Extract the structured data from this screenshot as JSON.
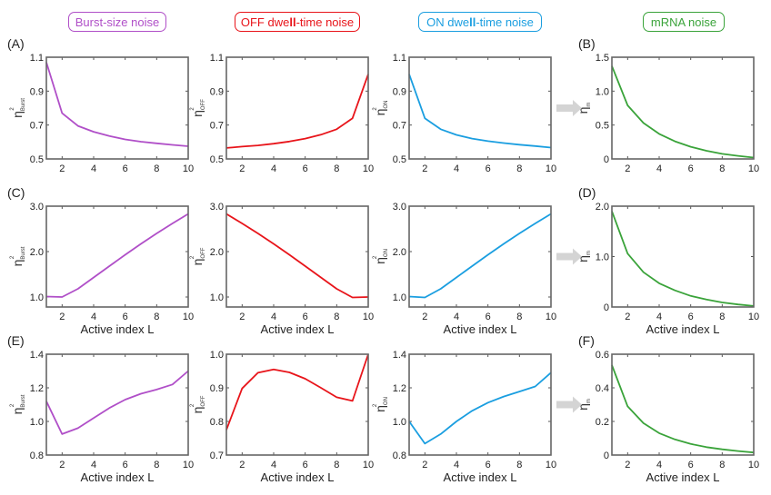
{
  "headers": [
    {
      "pre": "Burst-size noise",
      "bold": "",
      "post": "",
      "color": "#b04fc8"
    },
    {
      "pre": "OFF dwe",
      "bold": "ll",
      "post": "-time noise",
      "color": "#e8141a"
    },
    {
      "pre": "ON dwe",
      "bold": "ll",
      "post": "-time noise",
      "color": "#1a9ee0"
    },
    {
      "pre": "mRNA noise",
      "bold": "",
      "post": "",
      "color": "#3aa33a"
    }
  ],
  "panel_letters": [
    "(A)",
    "(B)",
    "(C)",
    "(D)",
    "(E)",
    "(F)"
  ],
  "arrow_color": "#d4d4d4",
  "chart_data": [
    {
      "id": "A-burst",
      "type": "line",
      "row": 0,
      "col": 0,
      "color": "#b04fc8",
      "xlabel": "",
      "ylabel": "η²Burst",
      "ylabel_main": "η",
      "ylabel_sup": "2",
      "ylabel_sub": "Burst",
      "x": [
        1,
        2,
        3,
        4,
        5,
        6,
        7,
        8,
        9,
        10
      ],
      "values": [
        1.07,
        0.77,
        0.695,
        0.66,
        0.635,
        0.615,
        0.602,
        0.592,
        0.583,
        0.575
      ],
      "ylim": [
        0.5,
        1.1
      ],
      "yticks": [
        0.5,
        0.7,
        0.9,
        1.1
      ],
      "ytick_labels": [
        "0.5",
        "0.7",
        "0.9",
        "1.1"
      ],
      "xlim": [
        1,
        10
      ],
      "xticks": [
        2,
        4,
        6,
        8,
        10
      ],
      "xtick_labels": [
        "2",
        "4",
        "6",
        "8",
        "10"
      ]
    },
    {
      "id": "A-off",
      "type": "line",
      "row": 0,
      "col": 1,
      "color": "#e8141a",
      "xlabel": "",
      "ylabel": "η²OFF",
      "ylabel_main": "η",
      "ylabel_sup": "2",
      "ylabel_sub": "OFF",
      "x": [
        1,
        2,
        3,
        4,
        5,
        6,
        7,
        8,
        9,
        10
      ],
      "values": [
        0.565,
        0.573,
        0.58,
        0.59,
        0.603,
        0.62,
        0.643,
        0.675,
        0.74,
        1.0
      ],
      "ylim": [
        0.5,
        1.1
      ],
      "yticks": [
        0.5,
        0.7,
        0.9,
        1.1
      ],
      "ytick_labels": [
        "0.5",
        "0.7",
        "0.9",
        "1.1"
      ],
      "xlim": [
        1,
        10
      ],
      "xticks": [
        2,
        4,
        6,
        8,
        10
      ],
      "xtick_labels": [
        "2",
        "4",
        "6",
        "8",
        "10"
      ]
    },
    {
      "id": "A-on",
      "type": "line",
      "row": 0,
      "col": 2,
      "color": "#1a9ee0",
      "xlabel": "",
      "ylabel": "η²ON",
      "ylabel_main": "η",
      "ylabel_sup": "2",
      "ylabel_sub": "ON",
      "x": [
        1,
        2,
        3,
        4,
        5,
        6,
        7,
        8,
        9,
        10
      ],
      "values": [
        1.0,
        0.74,
        0.675,
        0.642,
        0.62,
        0.605,
        0.594,
        0.584,
        0.576,
        0.567
      ],
      "ylim": [
        0.5,
        1.1
      ],
      "yticks": [
        0.5,
        0.7,
        0.9,
        1.1
      ],
      "ytick_labels": [
        "0.5",
        "0.7",
        "0.9",
        "1.1"
      ],
      "xlim": [
        1,
        10
      ],
      "xticks": [
        2,
        4,
        6,
        8,
        10
      ],
      "xtick_labels": [
        "2",
        "4",
        "6",
        "8",
        "10"
      ]
    },
    {
      "id": "B-mrna",
      "type": "line",
      "row": 0,
      "col": 3,
      "color": "#3aa33a",
      "xlabel": "",
      "ylabel": "η²m",
      "ylabel_main": "η",
      "ylabel_sup": "2",
      "ylabel_sub": "m",
      "x": [
        1,
        2,
        3,
        4,
        5,
        6,
        7,
        8,
        9,
        10
      ],
      "values": [
        1.37,
        0.79,
        0.53,
        0.37,
        0.26,
        0.18,
        0.12,
        0.075,
        0.045,
        0.02
      ],
      "ylim": [
        0,
        1.5
      ],
      "yticks": [
        0,
        0.5,
        1.0,
        1.5
      ],
      "ytick_labels": [
        "0",
        "0.5",
        "1.0",
        "1.5"
      ],
      "xlim": [
        1,
        10
      ],
      "xticks": [
        2,
        4,
        6,
        8,
        10
      ],
      "xtick_labels": [
        "2",
        "4",
        "6",
        "8",
        "10"
      ]
    },
    {
      "id": "C-burst",
      "type": "line",
      "row": 1,
      "col": 0,
      "color": "#b04fc8",
      "xlabel": "Active index L",
      "ylabel": "η²Burst",
      "ylabel_main": "η",
      "ylabel_sup": "2",
      "ylabel_sub": "Burst",
      "x": [
        1,
        2,
        3,
        4,
        5,
        6,
        7,
        8,
        9,
        10
      ],
      "values": [
        1.01,
        1.0,
        1.18,
        1.43,
        1.68,
        1.93,
        2.17,
        2.4,
        2.62,
        2.83
      ],
      "ylim": [
        0.78,
        3.0
      ],
      "yticks": [
        1.0,
        2.0,
        3.0
      ],
      "ytick_labels": [
        "1.0",
        "2.0",
        "3.0"
      ],
      "xlim": [
        1,
        10
      ],
      "xticks": [
        2,
        4,
        6,
        8,
        10
      ],
      "xtick_labels": [
        "2",
        "4",
        "6",
        "8",
        "10"
      ]
    },
    {
      "id": "C-off",
      "type": "line",
      "row": 1,
      "col": 1,
      "color": "#e8141a",
      "xlabel": "Active index L",
      "ylabel": "η²OFF",
      "ylabel_main": "η",
      "ylabel_sup": "2",
      "ylabel_sub": "OFF",
      "x": [
        1,
        2,
        3,
        4,
        5,
        6,
        7,
        8,
        9,
        10
      ],
      "values": [
        2.83,
        2.62,
        2.4,
        2.17,
        1.93,
        1.68,
        1.43,
        1.18,
        0.99,
        1.0
      ],
      "ylim": [
        0.78,
        3.0
      ],
      "yticks": [
        1.0,
        2.0,
        3.0
      ],
      "ytick_labels": [
        "1.0",
        "2.0",
        "3.0"
      ],
      "xlim": [
        1,
        10
      ],
      "xticks": [
        2,
        4,
        6,
        8,
        10
      ],
      "xtick_labels": [
        "2",
        "4",
        "6",
        "8",
        "10"
      ]
    },
    {
      "id": "C-on",
      "type": "line",
      "row": 1,
      "col": 2,
      "color": "#1a9ee0",
      "xlabel": "Active index L",
      "ylabel": "η²ON",
      "ylabel_main": "η",
      "ylabel_sup": "2",
      "ylabel_sub": "ON",
      "x": [
        1,
        2,
        3,
        4,
        5,
        6,
        7,
        8,
        9,
        10
      ],
      "values": [
        1.01,
        0.99,
        1.18,
        1.43,
        1.68,
        1.93,
        2.17,
        2.4,
        2.62,
        2.83
      ],
      "ylim": [
        0.78,
        3.0
      ],
      "yticks": [
        1.0,
        2.0,
        3.0
      ],
      "ytick_labels": [
        "1.0",
        "2.0",
        "3.0"
      ],
      "xlim": [
        1,
        10
      ],
      "xticks": [
        2,
        4,
        6,
        8,
        10
      ],
      "xtick_labels": [
        "2",
        "4",
        "6",
        "8",
        "10"
      ]
    },
    {
      "id": "D-mrna",
      "type": "line",
      "row": 1,
      "col": 3,
      "color": "#3aa33a",
      "xlabel": "Active index L",
      "ylabel": "η²m",
      "ylabel_main": "η",
      "ylabel_sup": "2",
      "ylabel_sub": "m",
      "x": [
        1,
        2,
        3,
        4,
        5,
        6,
        7,
        8,
        9,
        10
      ],
      "values": [
        1.9,
        1.06,
        0.69,
        0.47,
        0.33,
        0.22,
        0.15,
        0.09,
        0.05,
        0.02
      ],
      "ylim": [
        0,
        2.0
      ],
      "yticks": [
        0,
        1.0,
        2.0
      ],
      "ytick_labels": [
        "0",
        "1.0",
        "2.0"
      ],
      "xlim": [
        1,
        10
      ],
      "xticks": [
        2,
        4,
        6,
        8,
        10
      ],
      "xtick_labels": [
        "2",
        "4",
        "6",
        "8",
        "10"
      ]
    },
    {
      "id": "E-burst",
      "type": "line",
      "row": 2,
      "col": 0,
      "color": "#b04fc8",
      "xlabel": "Active index L",
      "ylabel": "η²Burst",
      "ylabel_main": "η",
      "ylabel_sup": "2",
      "ylabel_sub": "Burst",
      "x": [
        1,
        2,
        3,
        4,
        5,
        6,
        7,
        8,
        9,
        10
      ],
      "values": [
        1.12,
        0.925,
        0.96,
        1.02,
        1.08,
        1.13,
        1.165,
        1.19,
        1.22,
        1.3
      ],
      "ylim": [
        0.8,
        1.4
      ],
      "yticks": [
        0.8,
        1.0,
        1.2,
        1.4
      ],
      "ytick_labels": [
        "0.8",
        "1.0",
        "1.2",
        "1.4"
      ],
      "xlim": [
        1,
        10
      ],
      "xticks": [
        2,
        4,
        6,
        8,
        10
      ],
      "xtick_labels": [
        "2",
        "4",
        "6",
        "8",
        "10"
      ]
    },
    {
      "id": "E-off",
      "type": "line",
      "row": 2,
      "col": 1,
      "color": "#e8141a",
      "xlabel": "Active index L",
      "ylabel": "η²OFF",
      "ylabel_main": "η",
      "ylabel_sup": "2",
      "ylabel_sub": "OFF",
      "x": [
        1,
        2,
        3,
        4,
        5,
        6,
        7,
        8,
        9,
        10
      ],
      "values": [
        0.775,
        0.898,
        0.945,
        0.955,
        0.946,
        0.927,
        0.9,
        0.872,
        0.861,
        1.0
      ],
      "ylim": [
        0.7,
        1.0
      ],
      "yticks": [
        0.7,
        0.8,
        0.9,
        1.0
      ],
      "ytick_labels": [
        "0.7",
        "0.8",
        "0.9",
        "1.0"
      ],
      "xlim": [
        1,
        10
      ],
      "xticks": [
        2,
        4,
        6,
        8,
        10
      ],
      "xtick_labels": [
        "2",
        "4",
        "6",
        "8",
        "10"
      ]
    },
    {
      "id": "E-on",
      "type": "line",
      "row": 2,
      "col": 2,
      "color": "#1a9ee0",
      "xlabel": "Active index L",
      "ylabel": "η²ON",
      "ylabel_main": "η",
      "ylabel_sup": "2",
      "ylabel_sub": "ON",
      "x": [
        1,
        2,
        3,
        4,
        5,
        6,
        7,
        8,
        9,
        10
      ],
      "values": [
        1.0,
        0.868,
        0.925,
        1.0,
        1.063,
        1.112,
        1.148,
        1.178,
        1.208,
        1.29
      ],
      "ylim": [
        0.8,
        1.4
      ],
      "yticks": [
        0.8,
        1.0,
        1.2,
        1.4
      ],
      "ytick_labels": [
        "0.8",
        "1.0",
        "1.2",
        "1.4"
      ],
      "xlim": [
        1,
        10
      ],
      "xticks": [
        2,
        4,
        6,
        8,
        10
      ],
      "xtick_labels": [
        "2",
        "4",
        "6",
        "8",
        "10"
      ]
    },
    {
      "id": "F-mrna",
      "type": "line",
      "row": 2,
      "col": 3,
      "color": "#3aa33a",
      "xlabel": "Active index L",
      "ylabel": "η²m",
      "ylabel_main": "η",
      "ylabel_sup": "2",
      "ylabel_sub": "m",
      "x": [
        1,
        2,
        3,
        4,
        5,
        6,
        7,
        8,
        9,
        10
      ],
      "values": [
        0.535,
        0.29,
        0.19,
        0.13,
        0.093,
        0.066,
        0.047,
        0.034,
        0.024,
        0.015
      ],
      "ylim": [
        0,
        0.6
      ],
      "yticks": [
        0,
        0.2,
        0.4,
        0.6
      ],
      "ytick_labels": [
        "0",
        "0.2",
        "0.4",
        "0.6"
      ],
      "xlim": [
        1,
        10
      ],
      "xticks": [
        2,
        4,
        6,
        8,
        10
      ],
      "xtick_labels": [
        "2",
        "4",
        "6",
        "8",
        "10"
      ]
    }
  ]
}
